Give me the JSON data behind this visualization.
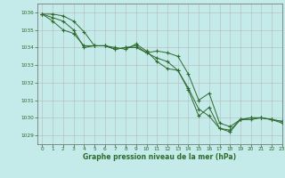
{
  "title": "Graphe pression niveau de la mer (hPa)",
  "background_color": "#c5eaea",
  "grid_color": "#b8b8b8",
  "line_color": "#2d6b2d",
  "xlim": [
    -0.5,
    23
  ],
  "ylim": [
    1028.5,
    1036.5
  ],
  "yticks": [
    1029,
    1030,
    1031,
    1032,
    1033,
    1034,
    1035,
    1036
  ],
  "xticks": [
    0,
    1,
    2,
    3,
    4,
    5,
    6,
    7,
    8,
    9,
    10,
    11,
    12,
    13,
    14,
    15,
    16,
    17,
    18,
    19,
    20,
    21,
    22,
    23
  ],
  "series": [
    [
      1035.9,
      1035.7,
      1035.5,
      1035.0,
      1034.0,
      1034.1,
      1034.1,
      1033.9,
      1034.0,
      1034.1,
      1033.7,
      1033.8,
      1033.7,
      1033.5,
      1032.5,
      1031.0,
      1031.4,
      1029.7,
      1029.5,
      1029.9,
      1029.9,
      1030.0,
      1029.9,
      1029.8
    ],
    [
      1035.9,
      1035.5,
      1035.0,
      1034.8,
      1034.1,
      1034.1,
      1034.1,
      1033.9,
      1034.0,
      1034.0,
      1033.7,
      1033.4,
      1033.2,
      1032.7,
      1031.7,
      1030.5,
      1030.1,
      1029.4,
      1029.3,
      1029.9,
      1030.0,
      1030.0,
      1029.9,
      1029.8
    ],
    [
      1035.9,
      1035.9,
      1035.8,
      1035.5,
      1034.9,
      1034.1,
      1034.1,
      1034.0,
      1033.9,
      1034.2,
      1033.8,
      1033.2,
      1032.8,
      1032.7,
      1031.6,
      1030.1,
      1030.6,
      1029.4,
      1029.2,
      1029.9,
      1030.0,
      1030.0,
      1029.9,
      1029.7
    ]
  ]
}
